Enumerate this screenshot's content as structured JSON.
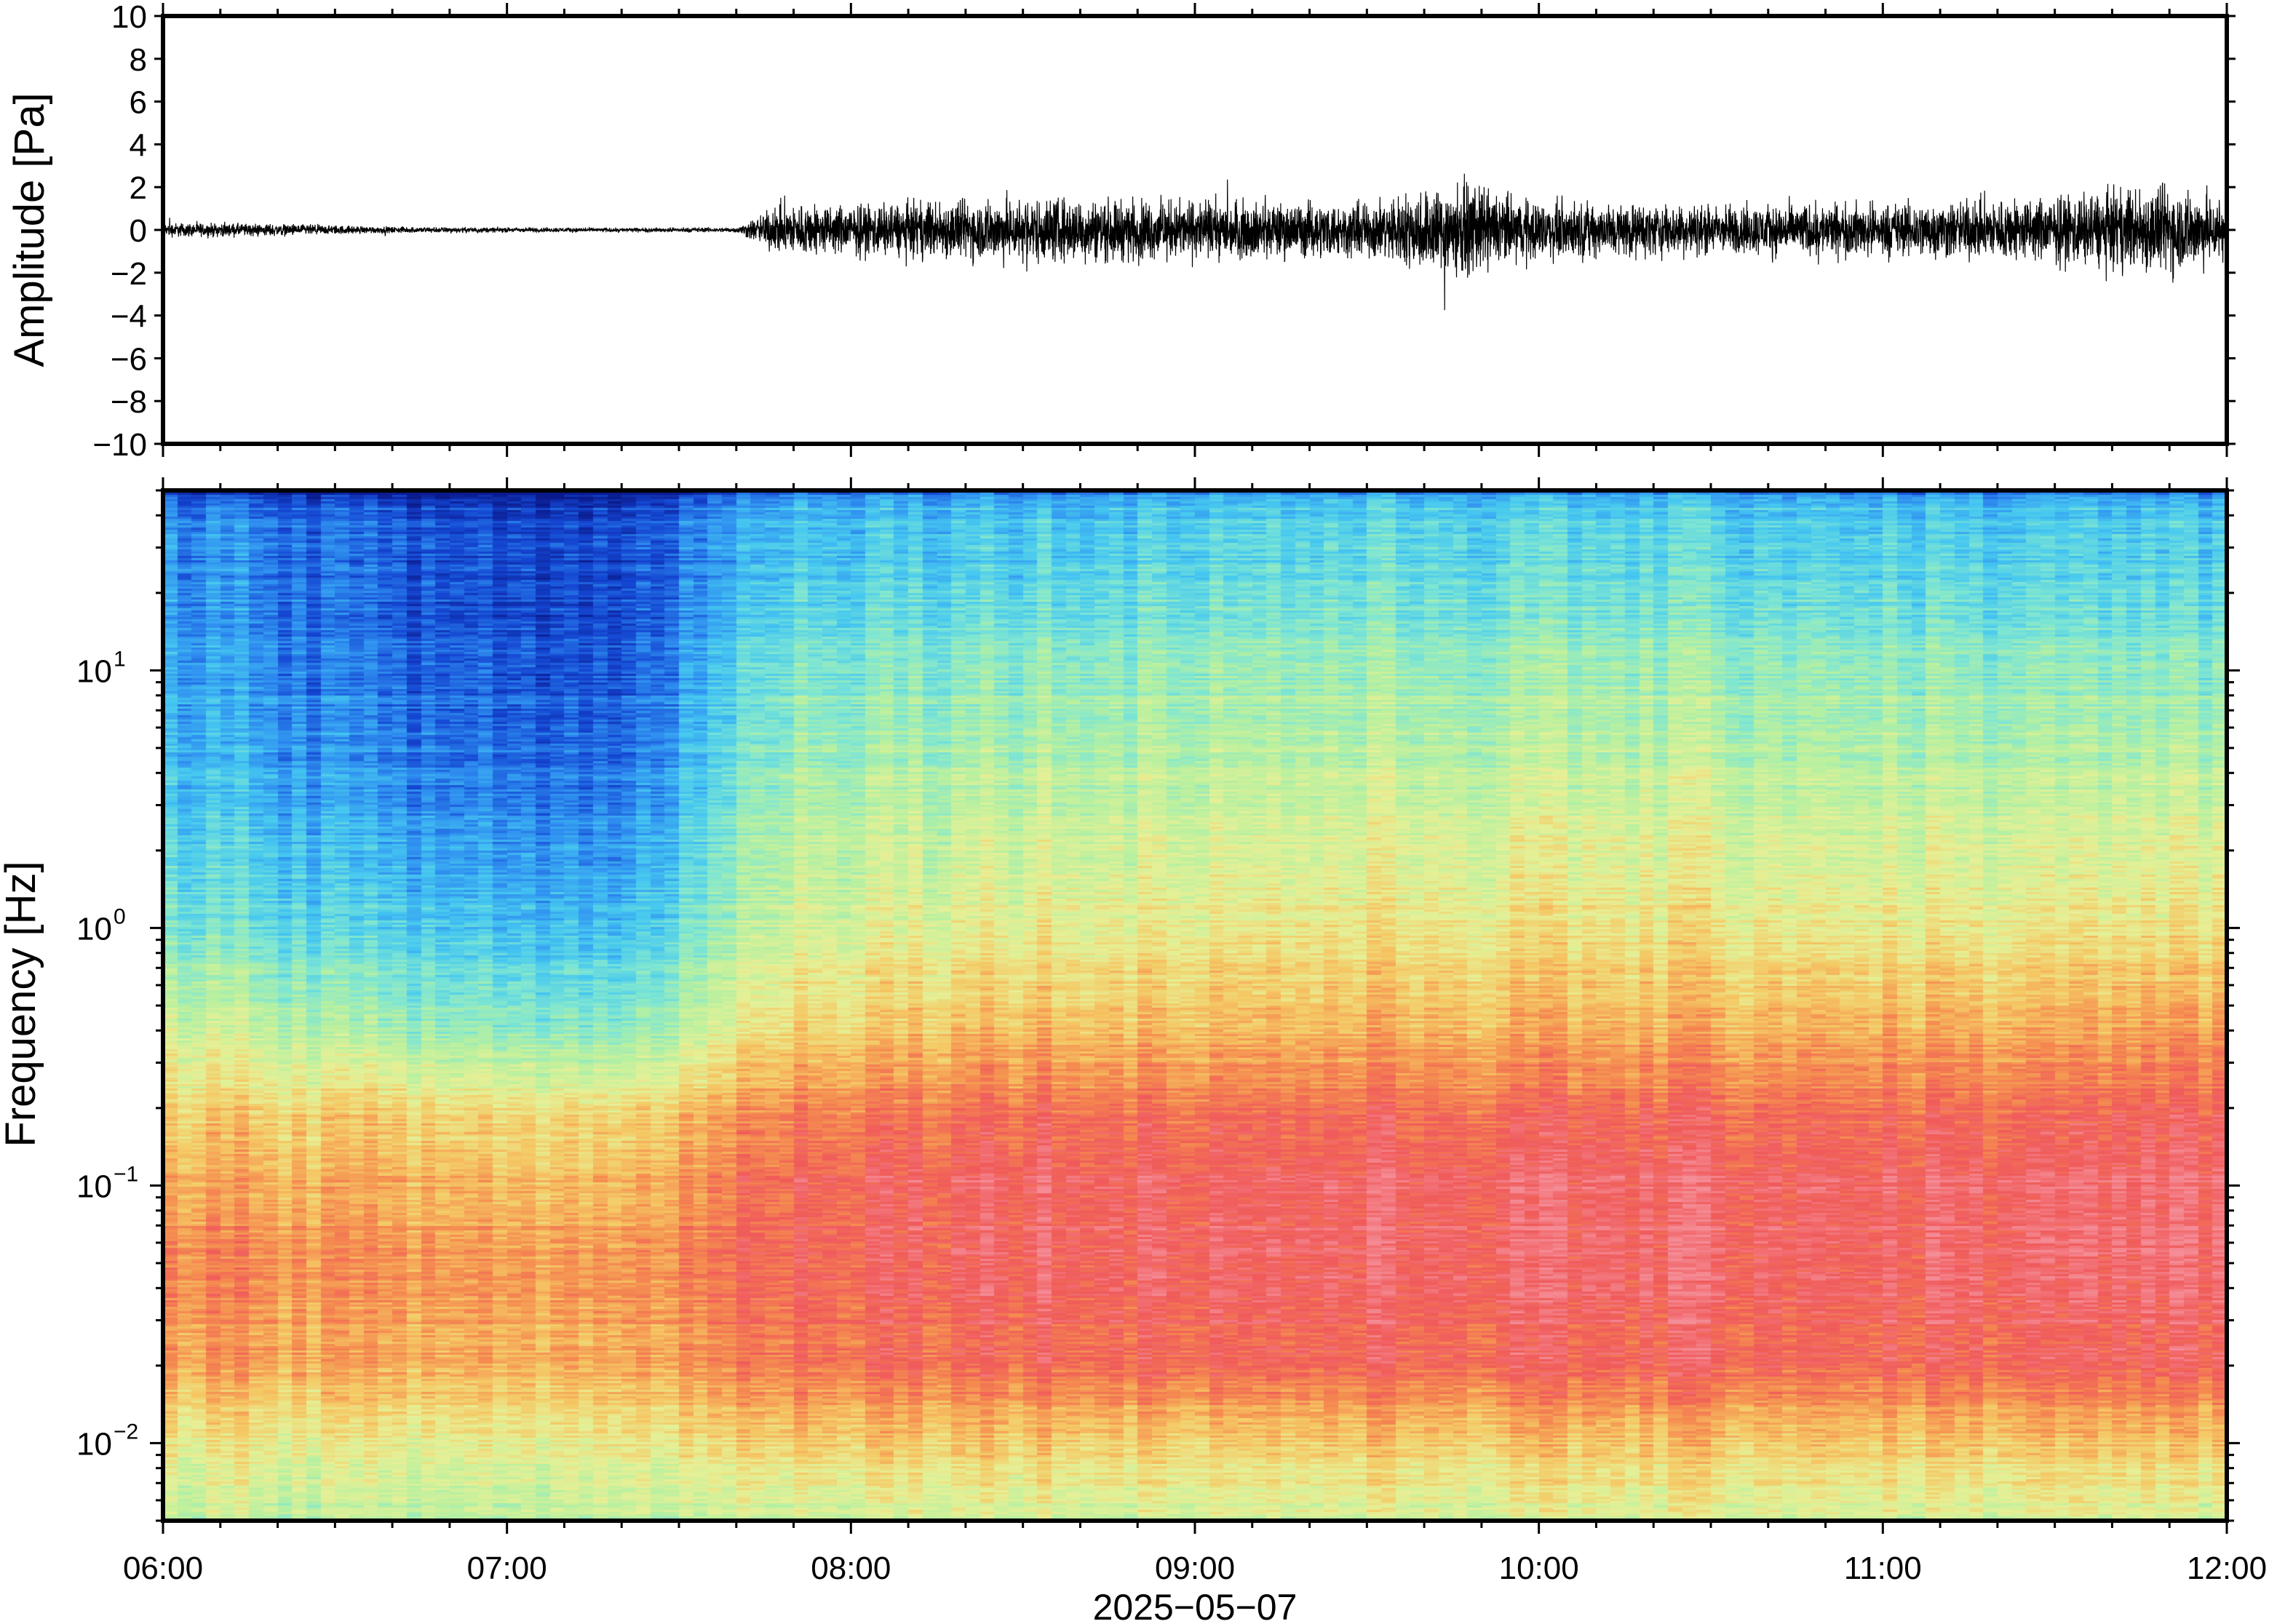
{
  "chart_data": [
    {
      "type": "line",
      "panel": "waveform",
      "ylabel": "Amplitude [Pa]",
      "ylim": [
        -10,
        10
      ],
      "yticks": [
        -10,
        -8,
        -6,
        -4,
        -2,
        0,
        2,
        4,
        6,
        8,
        10
      ],
      "ytick_labels": [
        "−10",
        "−8",
        "−6",
        "−4",
        "−2",
        "0",
        "2",
        "4",
        "6",
        "8",
        "10"
      ],
      "x_range": [
        "06:00",
        "12:00"
      ],
      "color": "#000000",
      "envelope": {
        "x": [
          "06:00",
          "06:20",
          "06:40",
          "07:00",
          "07:20",
          "07:40",
          "07:48",
          "08:00",
          "08:30",
          "09:00",
          "09:30",
          "09:45",
          "10:00",
          "10:30",
          "11:00",
          "11:30",
          "11:50",
          "12:00"
        ],
        "amplitude": [
          0.35,
          0.3,
          0.15,
          0.12,
          0.1,
          0.12,
          1.3,
          1.2,
          1.6,
          1.4,
          1.3,
          2.3,
          1.4,
          1.2,
          1.3,
          1.6,
          2.2,
          1.5
        ]
      }
    },
    {
      "type": "heatmap",
      "panel": "spectrogram",
      "ylabel": "Frequency [Hz]",
      "yscale": "log",
      "ylim": [
        0.005,
        50
      ],
      "yticks": [
        0.01,
        0.1,
        1,
        10
      ],
      "ytick_labels": [
        {
          "base": "10",
          "exp": "−2"
        },
        {
          "base": "10",
          "exp": "−1"
        },
        {
          "base": "10",
          "exp": "0"
        },
        {
          "base": "10",
          "exp": "1"
        }
      ],
      "xlabel": "2025−05−07",
      "xticks": [
        "06:00",
        "07:00",
        "08:00",
        "09:00",
        "10:00",
        "11:00",
        "12:00"
      ],
      "colormap": [
        "#0a1a8c",
        "#1446d2",
        "#2f8ff0",
        "#46c8f0",
        "#7fe6d2",
        "#b7f0a0",
        "#e6f096",
        "#f5c864",
        "#f58c50",
        "#f05a5a",
        "#f58c96"
      ],
      "levels": {
        "x": [
          "06:00",
          "06:40",
          "07:20",
          "07:48",
          "08:30",
          "09:00",
          "09:40",
          "10:20",
          "11:00",
          "11:30",
          "12:00"
        ],
        "log_freq": [
          -2.3,
          -2.0,
          -1.7,
          -1.3,
          -1.0,
          -0.7,
          -0.4,
          0,
          0.5,
          1.0,
          1.5
        ],
        "z": [
          [
            5.3,
            5.0,
            5.2,
            5.5,
            5.6,
            5.6,
            5.6,
            5.7,
            5.6,
            5.6,
            5.5
          ],
          [
            6.3,
            6.0,
            6.2,
            7.0,
            7.0,
            6.9,
            6.9,
            7.0,
            7.0,
            6.9,
            7.0
          ],
          [
            7.8,
            7.4,
            7.4,
            8.6,
            8.8,
            8.8,
            8.8,
            8.9,
            8.8,
            8.8,
            8.9
          ],
          [
            8.3,
            7.8,
            7.8,
            9.0,
            9.2,
            9.2,
            9.2,
            9.3,
            9.2,
            9.2,
            9.4
          ],
          [
            7.6,
            7.4,
            7.2,
            9.0,
            9.3,
            9.2,
            9.3,
            9.3,
            9.3,
            9.3,
            9.4
          ],
          [
            6.8,
            6.6,
            6.4,
            8.2,
            8.6,
            8.5,
            8.6,
            8.6,
            8.6,
            8.5,
            8.8
          ],
          [
            5.8,
            4.6,
            4.2,
            6.8,
            7.3,
            7.2,
            7.4,
            7.4,
            7.5,
            7.4,
            7.8
          ],
          [
            4.2,
            3.2,
            2.8,
            5.8,
            6.2,
            6.3,
            6.4,
            6.4,
            6.3,
            6.2,
            6.5
          ],
          [
            3.2,
            2.0,
            1.7,
            5.0,
            5.3,
            5.4,
            5.5,
            5.5,
            5.4,
            5.2,
            5.4
          ],
          [
            2.6,
            1.4,
            1.1,
            4.2,
            4.4,
            4.6,
            4.6,
            4.6,
            4.5,
            4.2,
            4.3
          ],
          [
            2.2,
            1.2,
            0.9,
            3.0,
            3.1,
            3.3,
            3.4,
            3.3,
            3.2,
            3.0,
            3.0
          ]
        ]
      }
    }
  ]
}
